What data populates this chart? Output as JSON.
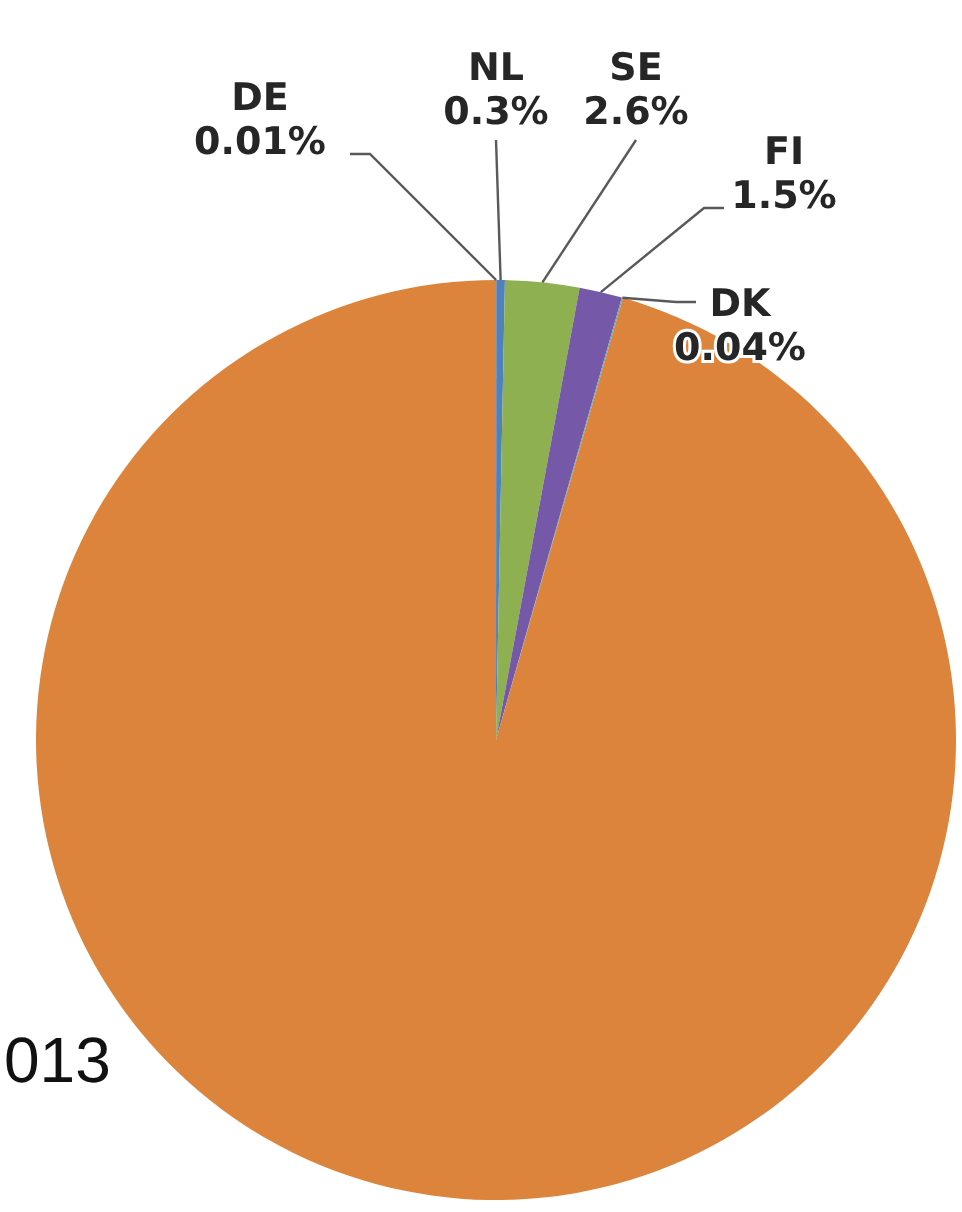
{
  "chart_data": {
    "type": "pie",
    "categories": [
      "DE",
      "NL",
      "SE",
      "FI",
      "DK",
      null
    ],
    "values": [
      0.01,
      0.3,
      2.6,
      1.5,
      0.04,
      95.55
    ],
    "colors": [
      "#c0504d",
      "#4f81bd",
      "#8fb050",
      "#7558a8",
      "#4bacc6",
      "#dd843c"
    ],
    "value_labels": [
      "0.01%",
      "0.3%",
      "2.6%",
      "1.5%",
      "0.04%",
      null
    ],
    "annotations": [
      "013"
    ]
  }
}
